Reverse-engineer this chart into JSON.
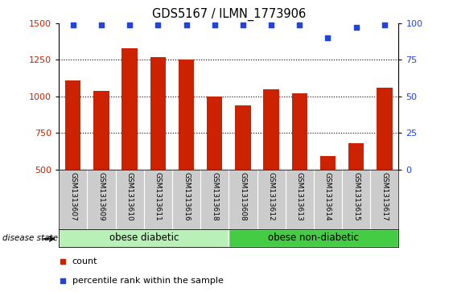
{
  "title": "GDS5167 / ILMN_1773906",
  "categories": [
    "GSM1313607",
    "GSM1313609",
    "GSM1313610",
    "GSM1313611",
    "GSM1313616",
    "GSM1313618",
    "GSM1313608",
    "GSM1313612",
    "GSM1313613",
    "GSM1313614",
    "GSM1313615",
    "GSM1313617"
  ],
  "bar_values": [
    1110,
    1035,
    1330,
    1270,
    1250,
    1000,
    940,
    1050,
    1020,
    590,
    680,
    1060
  ],
  "bar_color": "#cc2200",
  "percentile_values": [
    99,
    99,
    99,
    99,
    99,
    99,
    99,
    99,
    99,
    90,
    97,
    99
  ],
  "percentile_color": "#2244dd",
  "ylim_left": [
    500,
    1500
  ],
  "ylim_right": [
    0,
    100
  ],
  "yticks_left": [
    500,
    750,
    1000,
    1250,
    1500
  ],
  "yticks_right": [
    0,
    25,
    50,
    75,
    100
  ],
  "dotted_lines": [
    750,
    1000,
    1250
  ],
  "group1_label": "obese diabetic",
  "group2_label": "obese non-diabetic",
  "group1_count": 6,
  "group2_count": 6,
  "group1_color": "#b8f0b8",
  "group2_color": "#44cc44",
  "disease_state_label": "disease state",
  "legend_count_label": "count",
  "legend_percentile_label": "percentile rank within the sample",
  "tick_bg_color": "#cccccc",
  "plot_bg": "#ffffff",
  "tick_label_fontsize": 6.5,
  "title_fontsize": 10.5
}
